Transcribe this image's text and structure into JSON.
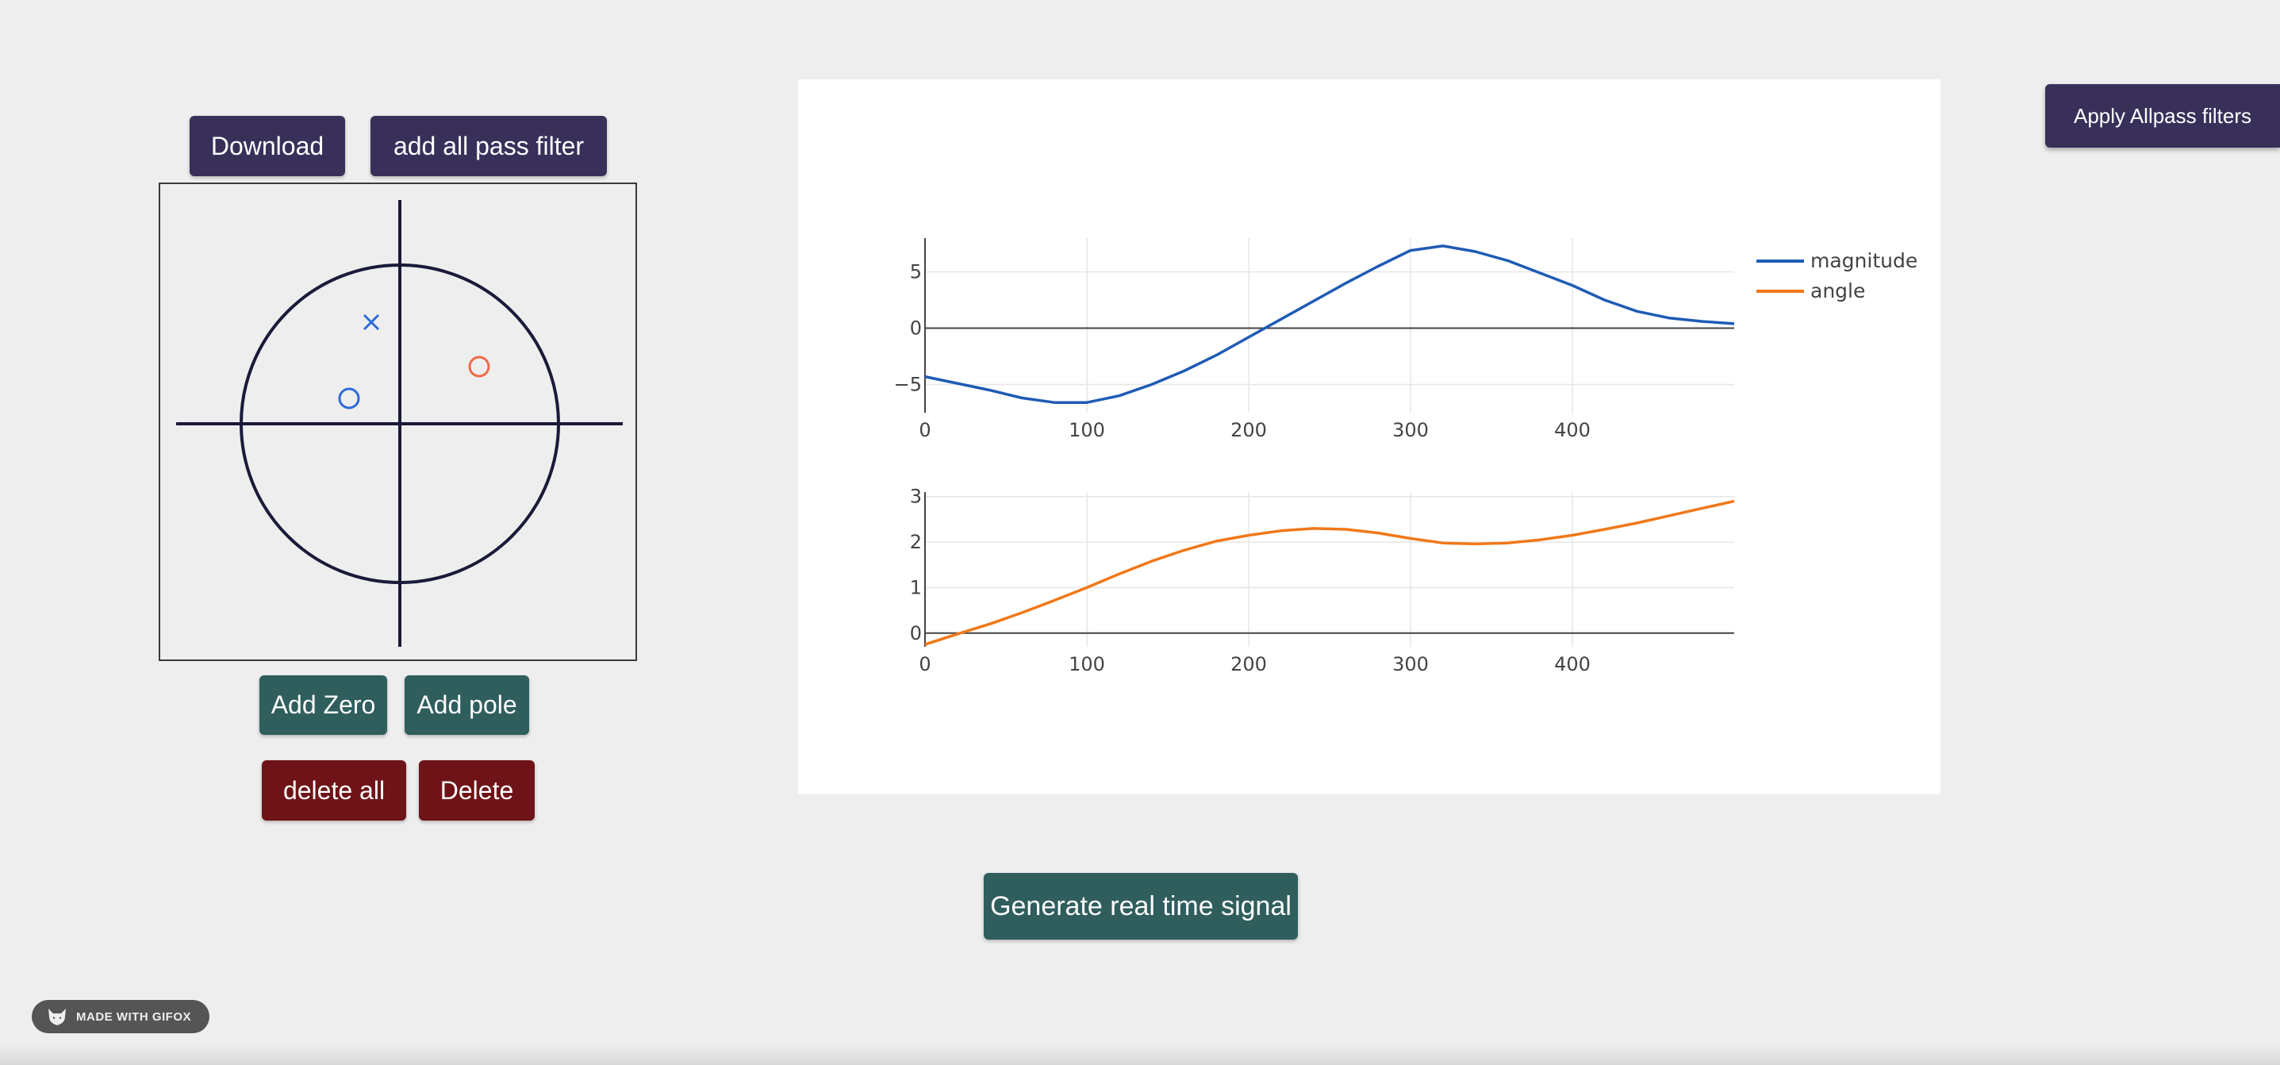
{
  "toolbar": {
    "download_label": "Download",
    "add_allpass_label": "add all pass filter",
    "apply_allpass_label": "Apply Allpass filters"
  },
  "zplane": {
    "zeros": [
      {
        "re": -0.32,
        "im": 0.16,
        "color": "#2e6ad8",
        "selected": false
      },
      {
        "re": 0.5,
        "im": 0.36,
        "color": "#f06a4a",
        "selected": true
      }
    ],
    "poles": [
      {
        "re": -0.18,
        "im": 0.64,
        "color": "#2e6ad8"
      }
    ],
    "unit_circle_color": "#1a1a3a"
  },
  "controls": {
    "add_zero_label": "Add Zero",
    "add_pole_label": "Add pole",
    "delete_all_label": "delete all",
    "delete_label": "Delete",
    "generate_label": "Generate real time signal"
  },
  "chart_data": [
    {
      "type": "line",
      "title": "",
      "xlabel": "",
      "ylabel": "",
      "xlim": [
        0,
        500
      ],
      "ylim": [
        -7.5,
        8
      ],
      "xticks": [
        "0",
        "100",
        "200",
        "300",
        "400"
      ],
      "yticks": [
        "5",
        "0",
        "−5"
      ],
      "ytick_values": [
        5,
        0,
        -5
      ],
      "xtick_values": [
        0,
        100,
        200,
        300,
        400
      ],
      "grid": true,
      "legend": "top-right",
      "series": [
        {
          "name": "magnitude",
          "color": "#1f5bb5",
          "x": [
            0,
            20,
            40,
            60,
            80,
            100,
            120,
            140,
            160,
            180,
            200,
            220,
            240,
            260,
            280,
            300,
            320,
            340,
            360,
            380,
            400,
            420,
            440,
            460,
            480,
            500
          ],
          "y": [
            -4.3,
            -4.9,
            -5.5,
            -6.2,
            -6.6,
            -6.6,
            -6.0,
            -5.0,
            -3.8,
            -2.4,
            -0.8,
            0.8,
            2.4,
            4.0,
            5.5,
            6.9,
            7.3,
            6.8,
            6.0,
            4.9,
            3.8,
            2.5,
            1.5,
            0.9,
            0.6,
            0.4
          ]
        }
      ]
    },
    {
      "type": "line",
      "title": "",
      "xlabel": "",
      "ylabel": "",
      "xlim": [
        0,
        500
      ],
      "ylim": [
        -0.3,
        3.1
      ],
      "xticks": [
        "0",
        "100",
        "200",
        "300",
        "400"
      ],
      "xtick_values": [
        0,
        100,
        200,
        300,
        400
      ],
      "yticks": [
        "3",
        "2",
        "1",
        "0"
      ],
      "ytick_values": [
        3,
        2,
        1,
        0
      ],
      "grid": true,
      "legend": "top-right",
      "series": [
        {
          "name": "angle",
          "color": "#f07818",
          "x": [
            0,
            20,
            40,
            60,
            80,
            100,
            120,
            140,
            160,
            180,
            200,
            220,
            240,
            260,
            280,
            300,
            320,
            340,
            360,
            380,
            400,
            420,
            440,
            460,
            480,
            500
          ],
          "y": [
            -0.25,
            -0.02,
            0.2,
            0.45,
            0.72,
            1.0,
            1.3,
            1.58,
            1.82,
            2.02,
            2.15,
            2.25,
            2.3,
            2.28,
            2.2,
            2.08,
            1.98,
            1.96,
            1.98,
            2.05,
            2.15,
            2.28,
            2.42,
            2.58,
            2.74,
            2.9
          ]
        }
      ]
    }
  ],
  "legend_entries": [
    {
      "name": "magnitude",
      "color": "#1f5bb5"
    },
    {
      "name": "angle",
      "color": "#f07818"
    }
  ],
  "watermark": {
    "text": "MADE WITH GIFOX"
  }
}
